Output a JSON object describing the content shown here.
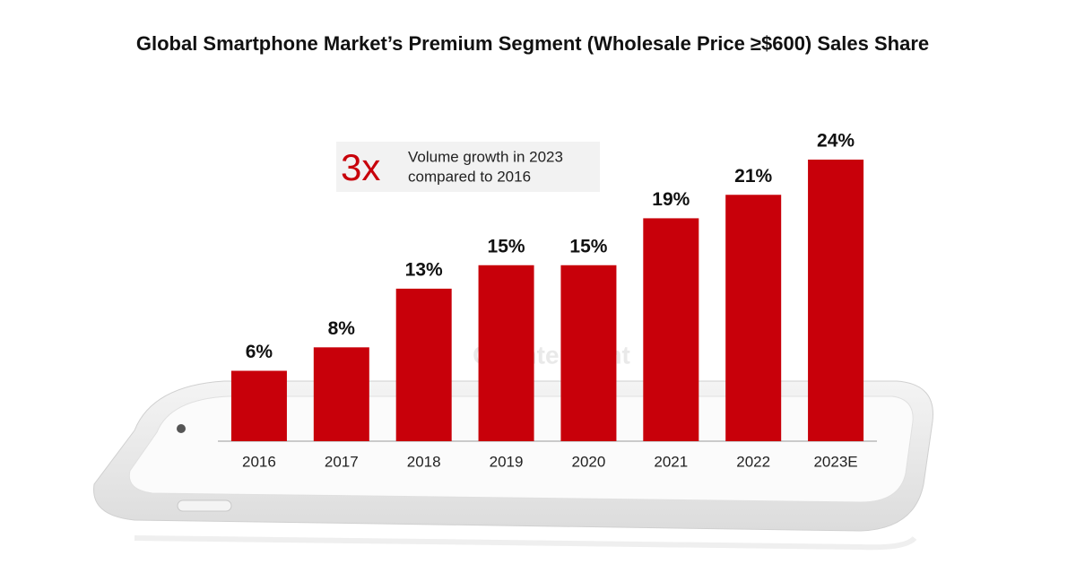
{
  "chart_data": {
    "type": "bar",
    "title": "Global Smartphone Market’s Premium Segment (Wholesale Price ≥$600) Sales Share",
    "annotation": {
      "big": "3x",
      "lines": [
        "Volume growth in 2023",
        "compared to 2016"
      ]
    },
    "watermark": "Counterpoint",
    "categories": [
      "2016",
      "2017",
      "2018",
      "2019",
      "2020",
      "2021",
      "2022",
      "2023E"
    ],
    "values": [
      6,
      8,
      13,
      15,
      15,
      19,
      21,
      24
    ],
    "value_labels": [
      "6%",
      "8%",
      "13%",
      "15%",
      "15%",
      "19%",
      "21%",
      "24%"
    ],
    "color": "#c8000a"
  }
}
